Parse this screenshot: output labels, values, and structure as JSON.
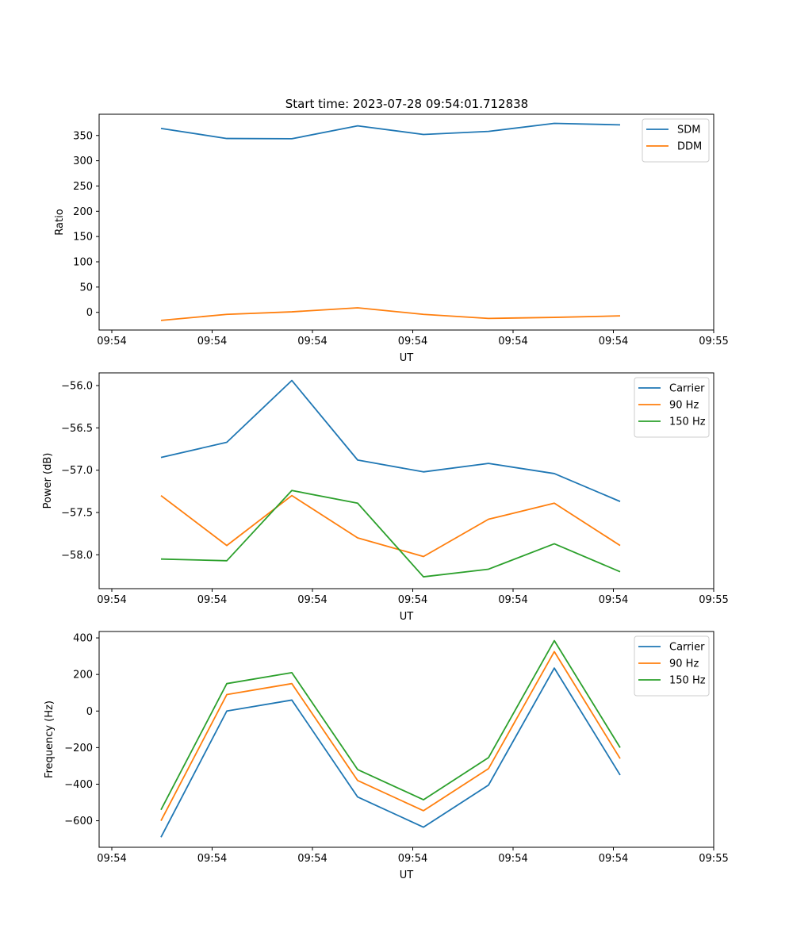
{
  "title": "Start time: 2023-07-28 09:54:01.712838",
  "chart_data": [
    {
      "type": "line",
      "xlabel": "UT",
      "ylabel": "Ratio",
      "x_ticks": [
        "09:54",
        "09:54",
        "09:54",
        "09:54",
        "09:54",
        "09:54",
        "09:55"
      ],
      "ylim": [
        -35,
        392
      ],
      "y_ticks": [
        0,
        50,
        100,
        150,
        200,
        250,
        300,
        350
      ],
      "legend_position": "top-right",
      "series": [
        {
          "name": "SDM",
          "color": "#1f77b4",
          "values": [
            364,
            344,
            343.5,
            369,
            352,
            358,
            374,
            371
          ]
        },
        {
          "name": "DDM",
          "color": "#ff7f0e",
          "values": [
            -16,
            -4,
            1,
            9,
            -4,
            -12,
            -10,
            -7
          ]
        }
      ]
    },
    {
      "type": "line",
      "xlabel": "UT",
      "ylabel": "Power (dB)",
      "x_ticks": [
        "09:54",
        "09:54",
        "09:54",
        "09:54",
        "09:54",
        "09:54",
        "09:55"
      ],
      "ylim": [
        -58.4,
        -55.85
      ],
      "y_ticks": [
        -58.0,
        -57.5,
        -57.0,
        -56.5,
        -56.0
      ],
      "y_tick_labels": [
        "−58.0",
        "−57.5",
        "−57.0",
        "−56.5",
        "−56.0"
      ],
      "legend_position": "top-right",
      "series": [
        {
          "name": "Carrier",
          "color": "#1f77b4",
          "values": [
            -56.85,
            -56.67,
            -55.94,
            -56.88,
            -57.02,
            -56.92,
            -57.04,
            -57.37
          ]
        },
        {
          "name": "90 Hz",
          "color": "#ff7f0e",
          "values": [
            -57.3,
            -57.89,
            -57.3,
            -57.8,
            -58.02,
            -57.58,
            -57.39,
            -57.89
          ]
        },
        {
          "name": "150 Hz",
          "color": "#2ca02c",
          "values": [
            -58.05,
            -58.07,
            -57.24,
            -57.39,
            -58.26,
            -58.17,
            -57.87,
            -58.2
          ]
        }
      ]
    },
    {
      "type": "line",
      "xlabel": "UT",
      "ylabel": "Frequency (Hz)",
      "x_ticks": [
        "09:54",
        "09:54",
        "09:54",
        "09:54",
        "09:54",
        "09:54",
        "09:55"
      ],
      "ylim": [
        -745,
        435
      ],
      "y_ticks": [
        -600,
        -400,
        -200,
        0,
        200,
        400
      ],
      "y_tick_labels": [
        "−600",
        "−400",
        "−200",
        "0",
        "200",
        "400"
      ],
      "legend_position": "top-right",
      "series": [
        {
          "name": "Carrier",
          "color": "#1f77b4",
          "values": [
            -690,
            0,
            60,
            -470,
            -635,
            -405,
            235,
            -350
          ]
        },
        {
          "name": "90 Hz",
          "color": "#ff7f0e",
          "values": [
            -600,
            90,
            150,
            -380,
            -545,
            -315,
            325,
            -260
          ]
        },
        {
          "name": "150 Hz",
          "color": "#2ca02c",
          "values": [
            -540,
            150,
            210,
            -320,
            -485,
            -255,
            385,
            -200
          ]
        }
      ]
    }
  ]
}
